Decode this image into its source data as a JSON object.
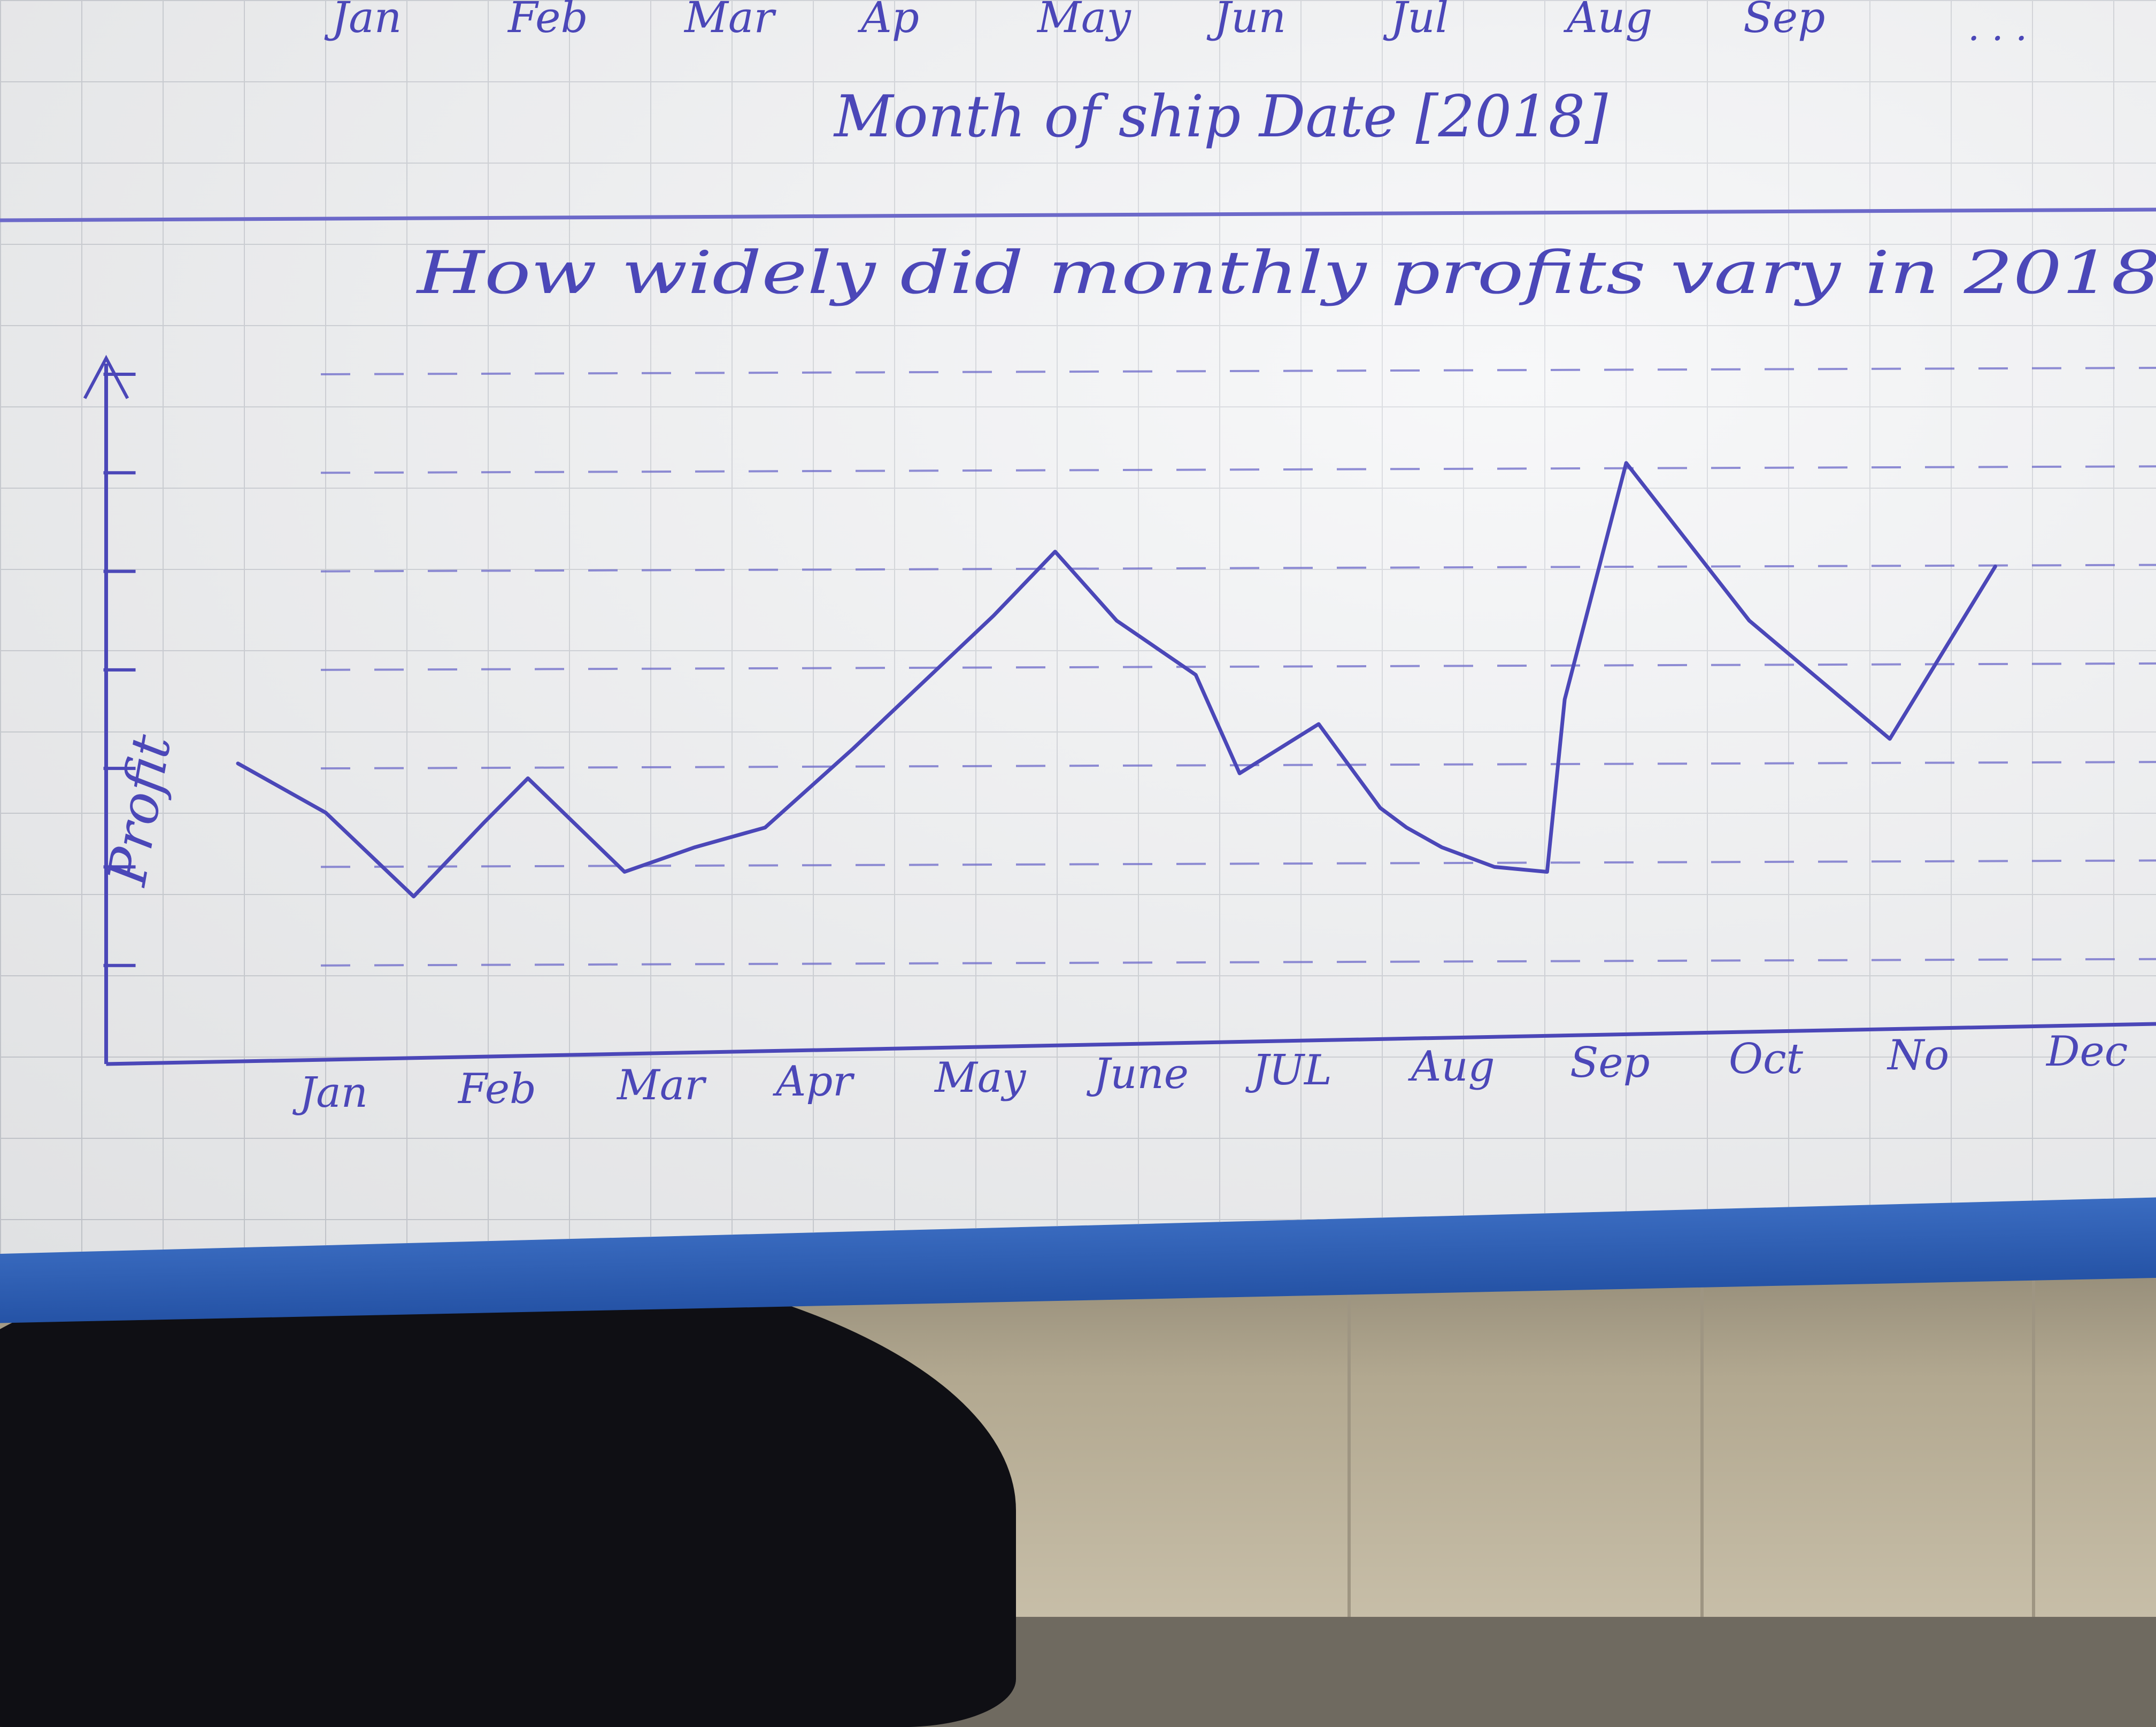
{
  "top_note": {
    "months": [
      "Jan",
      "Feb",
      "Mar",
      "Ap",
      "May",
      "Jun",
      "Jul",
      "Aug",
      "Sep"
    ],
    "ellipsis": ". . .",
    "caption": "Month of ship Date [2018]"
  },
  "chart_data": {
    "type": "line",
    "title": "How widely did monthly profits vary in 2018",
    "ylabel": "Profit",
    "xlabel": "",
    "categories": [
      "Jan",
      "Feb",
      "Mar",
      "Apr",
      "May",
      "June",
      "JUL",
      "Aug",
      "Sep",
      "Oct",
      "No",
      "Dec"
    ],
    "x": [
      0,
      0.5,
      1,
      1.4,
      1.65,
      2.2,
      2.6,
      3.0,
      3.5,
      4.3,
      4.65,
      5.0,
      5.45,
      5.7,
      6.15,
      6.5,
      6.65,
      6.85,
      7.15,
      7.45,
      7.55,
      7.9,
      8.6,
      9.4,
      10.0
    ],
    "values": [
      3.05,
      2.55,
      1.7,
      2.45,
      2.9,
      1.95,
      2.2,
      2.4,
      3.2,
      4.55,
      5.2,
      4.5,
      3.95,
      2.95,
      3.45,
      2.6,
      2.4,
      2.2,
      2.0,
      1.95,
      3.7,
      6.1,
      4.5,
      3.3,
      5.05
    ],
    "ylim": [
      0,
      7
    ],
    "grid": true,
    "yticks": [
      1,
      2,
      3,
      4,
      5,
      6,
      7
    ]
  },
  "colors": {
    "ink": "#4b47b8",
    "ink_light": "#6c69c9"
  }
}
